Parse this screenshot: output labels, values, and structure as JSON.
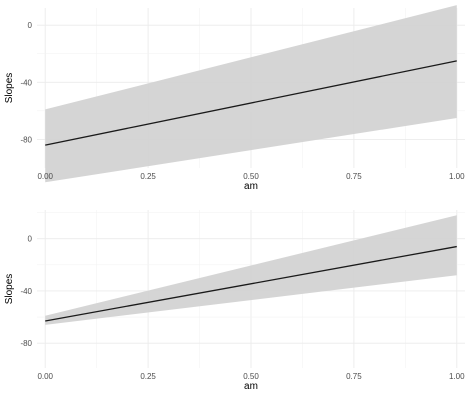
{
  "chart_data": [
    {
      "type": "line",
      "title": "",
      "xlabel": "am",
      "ylabel": "Slopes",
      "xlim": [
        -0.02,
        1.02
      ],
      "ylim": [
        -100,
        12
      ],
      "xticks": [
        0,
        0.25,
        0.5,
        0.75,
        1
      ],
      "xtick_labels": [
        "0.00",
        "0.25",
        "0.50",
        "0.75",
        "1.00"
      ],
      "yticks": [
        -80,
        -40,
        0
      ],
      "ytick_labels": [
        "-80",
        "-40",
        "0"
      ],
      "grid": true,
      "legend": "none",
      "band_color": "#d3d3d3",
      "line_color": "#1a1a1a",
      "series": [
        {
          "x": [
            0,
            1
          ],
          "y": [
            -84,
            -25
          ],
          "lower": [
            -110,
            -65
          ],
          "upper": [
            -59,
            14
          ]
        }
      ]
    },
    {
      "type": "line",
      "title": "",
      "xlabel": "am",
      "ylabel": "Slopes",
      "xlim": [
        -0.02,
        1.02
      ],
      "ylim": [
        -99,
        22
      ],
      "xticks": [
        0,
        0.25,
        0.5,
        0.75,
        1
      ],
      "xtick_labels": [
        "0.00",
        "0.25",
        "0.50",
        "0.75",
        "1.00"
      ],
      "yticks": [
        -80,
        -40,
        0
      ],
      "ytick_labels": [
        "-80",
        "-40",
        "0"
      ],
      "grid": true,
      "legend": "none",
      "band_color": "#d3d3d3",
      "line_color": "#1a1a1a",
      "series": [
        {
          "x": [
            0,
            1
          ],
          "y": [
            -63,
            -6
          ],
          "lower": [
            -66,
            -28
          ],
          "upper": [
            -59,
            18
          ]
        }
      ]
    }
  ]
}
